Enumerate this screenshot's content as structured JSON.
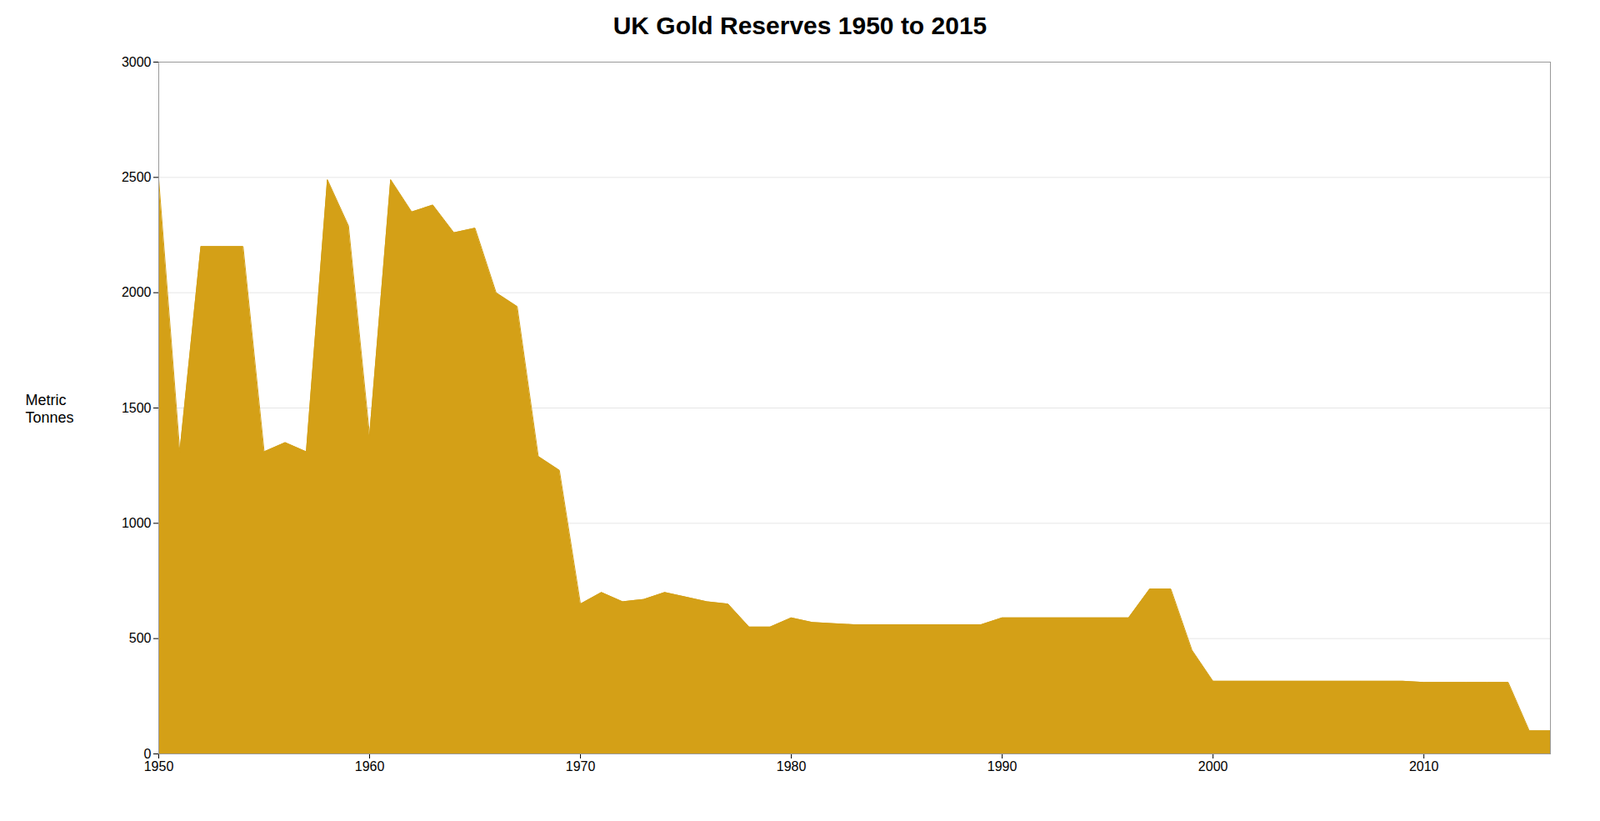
{
  "chart_data": {
    "type": "area",
    "title": "UK Gold Reserves 1950 to 2015",
    "ylabel": "Metric\nTonnes",
    "color": "#D4A017",
    "x": [
      1950,
      1951,
      1952,
      1953,
      1954,
      1955,
      1956,
      1957,
      1958,
      1959,
      1960,
      1961,
      1962,
      1963,
      1964,
      1965,
      1966,
      1967,
      1968,
      1969,
      1970,
      1971,
      1972,
      1973,
      1974,
      1975,
      1976,
      1977,
      1978,
      1979,
      1980,
      1981,
      1982,
      1983,
      1984,
      1985,
      1986,
      1987,
      1988,
      1989,
      1990,
      1991,
      1992,
      1993,
      1994,
      1995,
      1996,
      1997,
      1998,
      1999,
      2000,
      2001,
      2002,
      2003,
      2004,
      2005,
      2006,
      2007,
      2008,
      2009,
      2010,
      2011,
      2012,
      2013,
      2014,
      2015,
      2016
    ],
    "values": [
      2490,
      1310,
      2200,
      2200,
      2200,
      1310,
      1350,
      1310,
      2490,
      2290,
      1380,
      2490,
      2350,
      2380,
      2260,
      2280,
      2000,
      1940,
      1290,
      1230,
      650,
      700,
      660,
      670,
      700,
      680,
      660,
      650,
      550,
      550,
      590,
      570,
      565,
      560,
      560,
      560,
      560,
      560,
      560,
      560,
      590,
      590,
      590,
      590,
      590,
      590,
      590,
      715,
      715,
      450,
      315,
      315,
      315,
      315,
      315,
      315,
      315,
      315,
      315,
      315,
      310,
      310,
      310,
      310,
      310,
      100,
      100
    ],
    "xlim": [
      1950,
      2016
    ],
    "ylim": [
      0,
      3000
    ],
    "xticks": [
      1950,
      1960,
      1970,
      1980,
      1990,
      2000,
      2010
    ],
    "yticks": [
      0,
      500,
      1000,
      1500,
      2000,
      2500,
      3000
    ],
    "grid": "y"
  }
}
